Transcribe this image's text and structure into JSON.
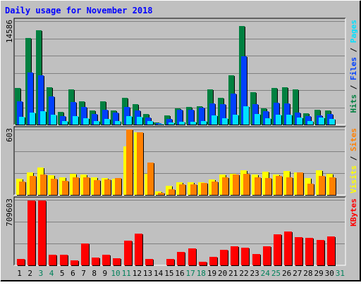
{
  "chart_data": [
    {
      "type": "bar",
      "panel": "hits-files-pages",
      "title": "Daily usage for November 2018",
      "ymax_label": "14586",
      "ylim": [
        0,
        14586
      ],
      "grid": true,
      "categories": [
        "1",
        "2",
        "3",
        "4",
        "5",
        "6",
        "7",
        "8",
        "9",
        "10",
        "11",
        "12",
        "13",
        "14",
        "15",
        "16",
        "17",
        "18",
        "19",
        "20",
        "21",
        "22",
        "23",
        "24",
        "25",
        "26",
        "27",
        "28",
        "29",
        "30",
        "31"
      ],
      "weekend_days": [
        "3",
        "4",
        "10",
        "11",
        "17",
        "18",
        "24",
        "25",
        "31"
      ],
      "legend": [
        {
          "text": "Hits",
          "color": "#008040"
        },
        {
          "text": "Files",
          "color": "#0040ff"
        },
        {
          "text": "Pages",
          "color": "#00e0ff"
        }
      ],
      "legend_separator": " / ",
      "series": [
        {
          "name": "Hits",
          "color": "#008040",
          "values": [
            5150,
            12200,
            13300,
            5300,
            1800,
            4950,
            3300,
            1950,
            3300,
            2000,
            3800,
            2900,
            1530,
            280,
            1260,
            2250,
            2450,
            2550,
            4950,
            3800,
            6950,
            13900,
            4600,
            2250,
            5200,
            5300,
            4950,
            1580,
            2100,
            1940,
            0
          ]
        },
        {
          "name": "Files",
          "color": "#0040ff",
          "values": [
            3250,
            7300,
            6900,
            4000,
            1220,
            3150,
            2450,
            1490,
            2050,
            1700,
            2450,
            1990,
            1010,
            170,
            800,
            2060,
            2110,
            2370,
            2940,
            2850,
            4330,
            9630,
            2910,
            1900,
            3050,
            2970,
            1660,
            1200,
            1300,
            1510,
            0
          ]
        },
        {
          "name": "Pages",
          "color": "#00e0ff",
          "values": [
            1100,
            1700,
            1900,
            1350,
            450,
            1200,
            920,
            510,
            840,
            480,
            1160,
            1050,
            510,
            80,
            270,
            380,
            370,
            530,
            1260,
            910,
            1430,
            2600,
            1470,
            880,
            1430,
            1360,
            950,
            540,
            960,
            810,
            0
          ]
        }
      ]
    },
    {
      "type": "bar",
      "panel": "visits-sites",
      "ymax_label": "603",
      "ylim": [
        0,
        603
      ],
      "grid": true,
      "categories": [
        "1",
        "2",
        "3",
        "4",
        "5",
        "6",
        "7",
        "8",
        "9",
        "10",
        "11",
        "12",
        "13",
        "14",
        "15",
        "16",
        "17",
        "18",
        "19",
        "20",
        "21",
        "22",
        "23",
        "24",
        "25",
        "26",
        "27",
        "28",
        "29",
        "30",
        "31"
      ],
      "legend": [
        {
          "text": "Visits",
          "color": "#ffff00"
        },
        {
          "text": "Sites",
          "color": "#ff8000"
        }
      ],
      "legend_separator": " / ",
      "series": [
        {
          "name": "Visits",
          "color": "#ffff00",
          "values": [
            150,
            205,
            255,
            180,
            165,
            195,
            185,
            160,
            155,
            150,
            450,
            575,
            195,
            30,
            85,
            115,
            115,
            115,
            145,
            185,
            195,
            225,
            190,
            215,
            190,
            220,
            210,
            155,
            225,
            195,
            0
          ]
        },
        {
          "name": "Sites",
          "color": "#ff8000",
          "values": [
            125,
            175,
            185,
            150,
            130,
            160,
            165,
            135,
            145,
            155,
            600,
            580,
            300,
            20,
            55,
            100,
            100,
            110,
            120,
            160,
            185,
            195,
            160,
            155,
            175,
            165,
            210,
            105,
            175,
            160,
            0
          ]
        }
      ]
    },
    {
      "type": "bar",
      "panel": "kbytes",
      "ymax_label": "709603",
      "ylim": [
        0,
        709603
      ],
      "grid": true,
      "categories": [
        "1",
        "2",
        "3",
        "4",
        "5",
        "6",
        "7",
        "8",
        "9",
        "10",
        "11",
        "12",
        "13",
        "14",
        "15",
        "16",
        "17",
        "18",
        "19",
        "20",
        "21",
        "22",
        "23",
        "24",
        "25",
        "26",
        "27",
        "28",
        "29",
        "30",
        "31"
      ],
      "legend": [
        {
          "text": "KBytes",
          "color": "#ff0000"
        }
      ],
      "series": [
        {
          "name": "KBytes",
          "color": "#ff0000",
          "values": [
            65000,
            705000,
            705000,
            115000,
            115000,
            55000,
            235000,
            85000,
            115000,
            75000,
            265000,
            345000,
            65000,
            0,
            65000,
            145000,
            185000,
            35000,
            95000,
            170000,
            205000,
            190000,
            125000,
            205000,
            335000,
            365000,
            305000,
            300000,
            275000,
            315000,
            0
          ]
        }
      ]
    }
  ]
}
